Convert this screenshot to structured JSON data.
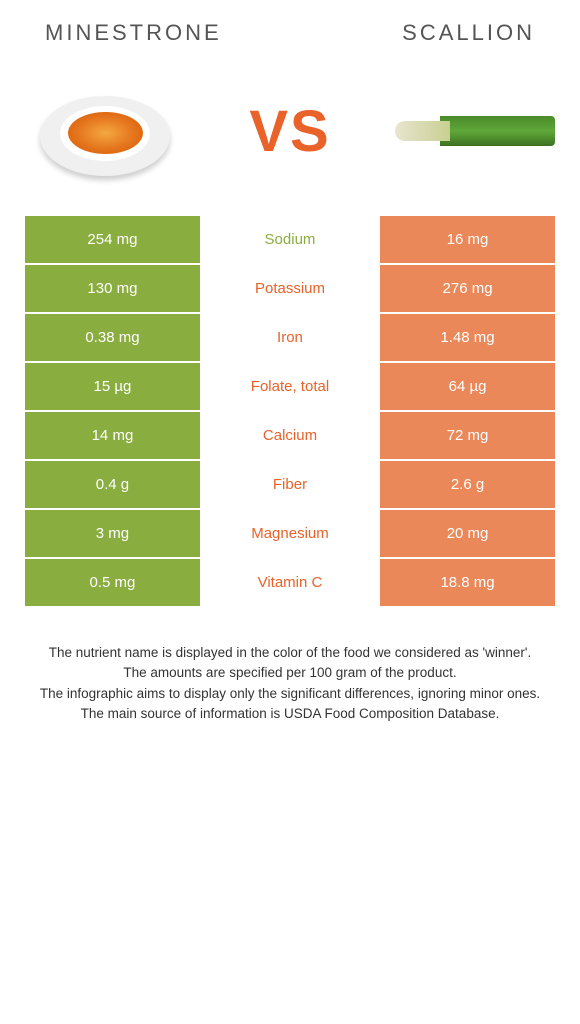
{
  "header": {
    "left_title": "MINESTRONE",
    "right_title": "SCALLION"
  },
  "vs": {
    "label": "VS"
  },
  "colors": {
    "left_bg": "#8aad3f",
    "right_bg": "#ea8859",
    "left_text": "#8aad3f",
    "right_text": "#e8622a"
  },
  "rows": [
    {
      "left": "254 mg",
      "label": "Sodium",
      "right": "16 mg",
      "winner": "left"
    },
    {
      "left": "130 mg",
      "label": "Potassium",
      "right": "276 mg",
      "winner": "right"
    },
    {
      "left": "0.38 mg",
      "label": "Iron",
      "right": "1.48 mg",
      "winner": "right"
    },
    {
      "left": "15 µg",
      "label": "Folate, total",
      "right": "64 µg",
      "winner": "right"
    },
    {
      "left": "14 mg",
      "label": "Calcium",
      "right": "72 mg",
      "winner": "right"
    },
    {
      "left": "0.4 g",
      "label": "Fiber",
      "right": "2.6 g",
      "winner": "right"
    },
    {
      "left": "3 mg",
      "label": "Magnesium",
      "right": "20 mg",
      "winner": "right"
    },
    {
      "left": "0.5 mg",
      "label": "Vitamin C",
      "right": "18.8 mg",
      "winner": "right"
    }
  ],
  "footer": {
    "line1": "The nutrient name is displayed in the color of the food we considered as 'winner'.",
    "line2": "The amounts are specified per 100 gram of the product.",
    "line3": "The infographic aims to display only the significant differences, ignoring minor ones.",
    "line4": "The main source of information is USDA Food Composition Database."
  }
}
